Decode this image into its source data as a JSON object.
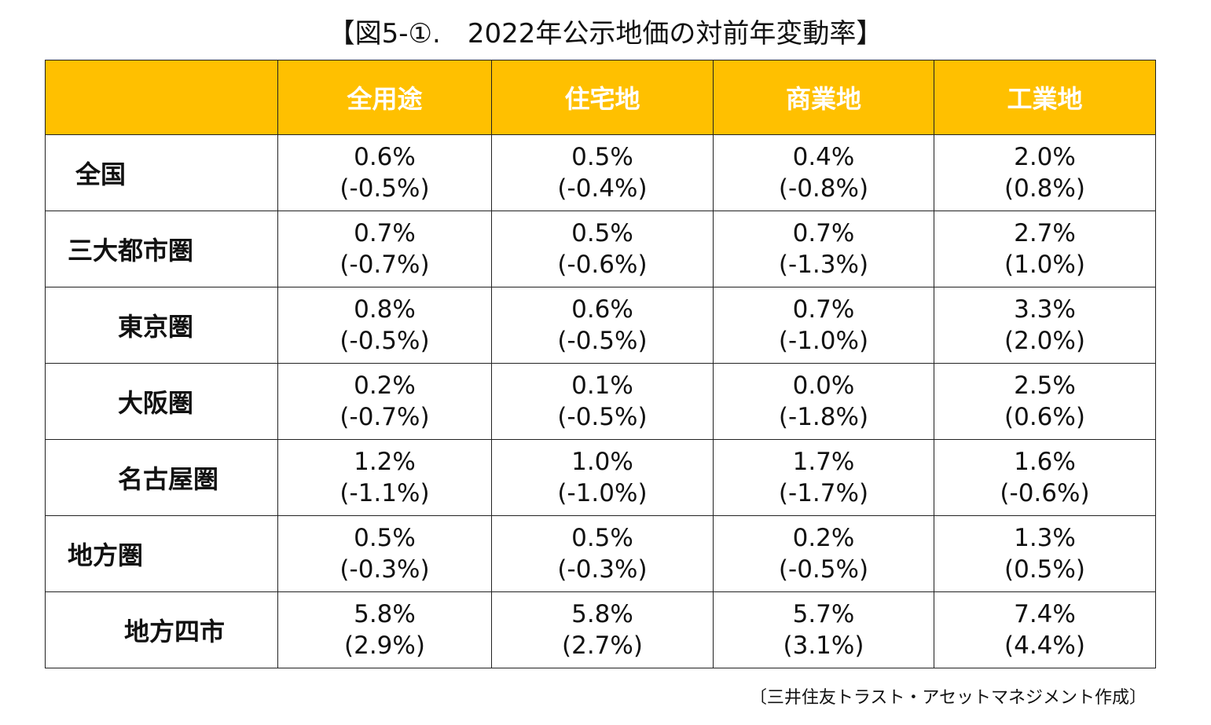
{
  "title": "【図5-①.　2022年公示地価の対前年変動率】",
  "columns": [
    "全用途",
    "住宅地",
    "商業地",
    "工業地"
  ],
  "rows": [
    {
      "label": "全国",
      "cells": [
        {
          "value": "0.6%",
          "prev": "(-0.5%)"
        },
        {
          "value": "0.5%",
          "prev": "(-0.4%)"
        },
        {
          "value": "0.4%",
          "prev": "(-0.8%)"
        },
        {
          "value": "2.0%",
          "prev": "(0.8%)"
        }
      ]
    },
    {
      "label": "三大都市圏",
      "cells": [
        {
          "value": "0.7%",
          "prev": "(-0.7%)"
        },
        {
          "value": "0.5%",
          "prev": "(-0.6%)"
        },
        {
          "value": "0.7%",
          "prev": "(-1.3%)"
        },
        {
          "value": "2.7%",
          "prev": "(1.0%)"
        }
      ]
    },
    {
      "label": "東京圏",
      "cells": [
        {
          "value": "0.8%",
          "prev": "(-0.5%)"
        },
        {
          "value": "0.6%",
          "prev": "(-0.5%)"
        },
        {
          "value": "0.7%",
          "prev": "(-1.0%)"
        },
        {
          "value": "3.3%",
          "prev": "(2.0%)"
        }
      ]
    },
    {
      "label": "大阪圏",
      "cells": [
        {
          "value": "0.2%",
          "prev": "(-0.7%)"
        },
        {
          "value": "0.1%",
          "prev": "(-0.5%)"
        },
        {
          "value": "0.0%",
          "prev": "(-1.8%)"
        },
        {
          "value": "2.5%",
          "prev": "(0.6%)"
        }
      ]
    },
    {
      "label": "名古屋圏",
      "cells": [
        {
          "value": "1.2%",
          "prev": "(-1.1%)"
        },
        {
          "value": "1.0%",
          "prev": "(-1.0%)"
        },
        {
          "value": "1.7%",
          "prev": "(-1.7%)"
        },
        {
          "value": "1.6%",
          "prev": "(-0.6%)"
        }
      ]
    },
    {
      "label": "地方圏",
      "cells": [
        {
          "value": "0.5%",
          "prev": "(-0.3%)"
        },
        {
          "value": "0.5%",
          "prev": "(-0.3%)"
        },
        {
          "value": "0.2%",
          "prev": "(-0.5%)"
        },
        {
          "value": "1.3%",
          "prev": "(0.5%)"
        }
      ]
    },
    {
      "label": "地方四市",
      "cells": [
        {
          "value": "5.8%",
          "prev": "(2.9%)"
        },
        {
          "value": "5.8%",
          "prev": "(2.7%)"
        },
        {
          "value": "5.7%",
          "prev": "(3.1%)"
        },
        {
          "value": "7.4%",
          "prev": "(4.4%)"
        }
      ]
    }
  ],
  "source": "〔三井住友トラスト・アセットマネジメント作成〕",
  "colors": {
    "header_bg": "#FFC000",
    "header_text": "#FFFFFF",
    "border": "#222222"
  }
}
